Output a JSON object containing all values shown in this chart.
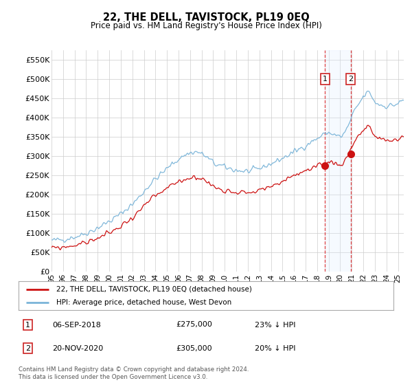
{
  "title": "22, THE DELL, TAVISTOCK, PL19 0EQ",
  "subtitle": "Price paid vs. HM Land Registry's House Price Index (HPI)",
  "ylabel_ticks": [
    "£0",
    "£50K",
    "£100K",
    "£150K",
    "£200K",
    "£250K",
    "£300K",
    "£350K",
    "£400K",
    "£450K",
    "£500K",
    "£550K"
  ],
  "ytick_values": [
    0,
    50000,
    100000,
    150000,
    200000,
    250000,
    300000,
    350000,
    400000,
    450000,
    500000,
    550000
  ],
  "ylim": [
    0,
    575000
  ],
  "xlim_start": 1995.0,
  "xlim_end": 2025.5,
  "xtick_years": [
    1995,
    1996,
    1997,
    1998,
    1999,
    2000,
    2001,
    2002,
    2003,
    2004,
    2005,
    2006,
    2007,
    2008,
    2009,
    2010,
    2011,
    2012,
    2013,
    2014,
    2015,
    2016,
    2017,
    2018,
    2019,
    2020,
    2021,
    2022,
    2023,
    2024,
    2025
  ],
  "hpi_color": "#7ab4d8",
  "price_color": "#cc1111",
  "vline_color": "#dd2222",
  "highlight_bg": "#ddeeff",
  "transaction1_x": 2018.68,
  "transaction1_y": 275000,
  "transaction2_x": 2020.9,
  "transaction2_y": 305000,
  "legend_label1": "22, THE DELL, TAVISTOCK, PL19 0EQ (detached house)",
  "legend_label2": "HPI: Average price, detached house, West Devon",
  "annotation1_label": "1",
  "annotation2_label": "2",
  "note1_num": "1",
  "note1_date": "06-SEP-2018",
  "note1_price": "£275,000",
  "note1_pct": "23% ↓ HPI",
  "note2_num": "2",
  "note2_date": "20-NOV-2020",
  "note2_price": "£305,000",
  "note2_pct": "20% ↓ HPI",
  "footer": "Contains HM Land Registry data © Crown copyright and database right 2024.\nThis data is licensed under the Open Government Licence v3.0.",
  "background_color": "#ffffff",
  "grid_color": "#cccccc"
}
